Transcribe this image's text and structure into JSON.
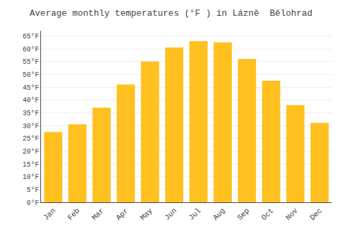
{
  "chart_data": {
    "type": "bar",
    "title": "Average monthly temperatures (°F ) in Lázně  Bělohrad",
    "categories": [
      "Jan",
      "Feb",
      "Mar",
      "Apr",
      "May",
      "Jun",
      "Jul",
      "Aug",
      "Sep",
      "Oct",
      "Nov",
      "Dec"
    ],
    "values": [
      27.5,
      30.5,
      37.0,
      46.0,
      55.0,
      60.5,
      63.0,
      62.5,
      56.0,
      47.5,
      38.0,
      31.0
    ],
    "color": "#FFC020",
    "ylim": [
      0,
      67
    ],
    "yticks": [
      {
        "value": 0,
        "label": "0°F"
      },
      {
        "value": 5,
        "label": "5°F"
      },
      {
        "value": 10,
        "label": "10°F"
      },
      {
        "value": 15,
        "label": "15°F"
      },
      {
        "value": 20,
        "label": "20°F"
      },
      {
        "value": 25,
        "label": "25°F"
      },
      {
        "value": 30,
        "label": "30°F"
      },
      {
        "value": 35,
        "label": "35°F"
      },
      {
        "value": 40,
        "label": "40°F"
      },
      {
        "value": 45,
        "label": "45°F"
      },
      {
        "value": 50,
        "label": "50°F"
      },
      {
        "value": 55,
        "label": "55°F"
      },
      {
        "value": 60,
        "label": "60°F"
      },
      {
        "value": 65,
        "label": "65°F"
      }
    ],
    "grid": true
  }
}
